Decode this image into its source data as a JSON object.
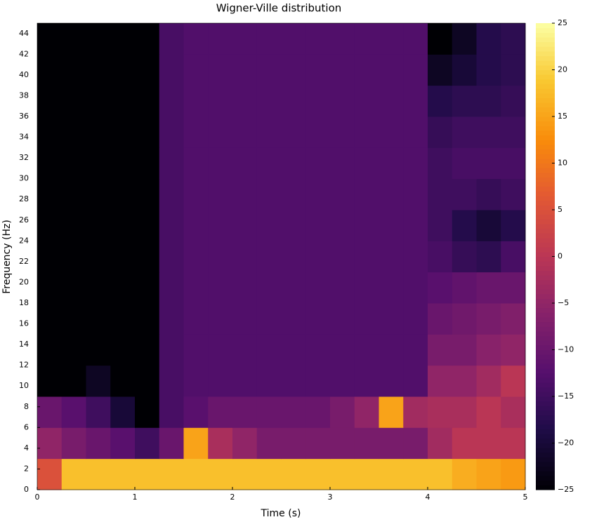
{
  "chart_data": {
    "type": "heatmap",
    "title": "Wigner-Ville distribution",
    "x_label": "Time (s)",
    "y_label": "Frequency (Hz)",
    "colormap": "inferno",
    "x": [
      0.125,
      0.375,
      0.625,
      0.875,
      1.125,
      1.375,
      1.625,
      1.875,
      2.125,
      2.375,
      2.625,
      2.875,
      3.125,
      3.375,
      3.625,
      3.875,
      4.125,
      4.375,
      4.625,
      4.875
    ],
    "y": [
      1.5,
      4.5,
      7.5,
      10.5,
      13.5,
      16.5,
      19.5,
      22.5,
      25.5,
      28.5,
      31.5,
      34.5,
      37.5,
      40.5,
      43.5
    ],
    "z": [
      [
        5,
        18,
        18,
        18,
        18,
        18,
        18,
        18,
        18,
        18,
        18,
        18,
        18,
        18,
        18,
        18,
        18,
        16,
        15,
        14
      ],
      [
        -5,
        -8,
        -10,
        -12,
        -15,
        -10,
        15,
        -2,
        -5,
        -8,
        -8,
        -8,
        -8,
        -8,
        -8,
        -8,
        -3,
        0,
        0,
        0
      ],
      [
        -10,
        -12,
        -15,
        -20,
        -25,
        -14,
        -12,
        -10,
        -10,
        -10,
        -10,
        -10,
        -8,
        -5,
        15,
        -3,
        -2,
        -2,
        0,
        -2
      ],
      [
        -25,
        -25,
        -22,
        -25,
        -25,
        -14,
        -13,
        -13,
        -13,
        -13,
        -13,
        -13,
        -13,
        -13,
        -13,
        -13,
        -5,
        -5,
        -3,
        0
      ],
      [
        -25,
        -25,
        -25,
        -25,
        -25,
        -14,
        -13,
        -13,
        -13,
        -13,
        -13,
        -13,
        -13,
        -13,
        -13,
        -13,
        -8,
        -8,
        -6,
        -5
      ],
      [
        -25,
        -25,
        -25,
        -25,
        -25,
        -14,
        -13,
        -13,
        -13,
        -13,
        -13,
        -13,
        -13,
        -13,
        -13,
        -13,
        -10,
        -9,
        -8,
        -7
      ],
      [
        -25,
        -25,
        -25,
        -25,
        -25,
        -14,
        -13,
        -13,
        -13,
        -13,
        -13,
        -13,
        -13,
        -13,
        -13,
        -13,
        -12,
        -11,
        -10,
        -10
      ],
      [
        -25,
        -25,
        -25,
        -25,
        -25,
        -14,
        -13,
        -13,
        -13,
        -13,
        -13,
        -13,
        -13,
        -13,
        -13,
        -13,
        -14,
        -16,
        -17,
        -14
      ],
      [
        -25,
        -25,
        -25,
        -25,
        -25,
        -14,
        -13,
        -13,
        -13,
        -13,
        -13,
        -13,
        -13,
        -13,
        -13,
        -13,
        -15,
        -18,
        -20,
        -18
      ],
      [
        -25,
        -25,
        -25,
        -25,
        -25,
        -14,
        -13,
        -13,
        -13,
        -13,
        -13,
        -13,
        -13,
        -13,
        -13,
        -13,
        -15,
        -15,
        -16,
        -15
      ],
      [
        -25,
        -25,
        -25,
        -25,
        -25,
        -14,
        -13,
        -13,
        -13,
        -13,
        -13,
        -13,
        -13,
        -13,
        -13,
        -13,
        -15,
        -14,
        -14,
        -14
      ],
      [
        -25,
        -25,
        -25,
        -25,
        -25,
        -14,
        -13,
        -13,
        -13,
        -13,
        -13,
        -13,
        -13,
        -13,
        -13,
        -13,
        -16,
        -15,
        -15,
        -15
      ],
      [
        -25,
        -25,
        -25,
        -25,
        -25,
        -14,
        -13,
        -13,
        -13,
        -13,
        -13,
        -13,
        -13,
        -13,
        -13,
        -13,
        -18,
        -17,
        -17,
        -16
      ],
      [
        -25,
        -25,
        -25,
        -25,
        -25,
        -14,
        -13,
        -13,
        -13,
        -13,
        -13,
        -13,
        -13,
        -13,
        -13,
        -13,
        -22,
        -20,
        -18,
        -17
      ],
      [
        -25,
        -25,
        -25,
        -25,
        -25,
        -14,
        -13,
        -13,
        -13,
        -13,
        -13,
        -13,
        -13,
        -13,
        -13,
        -13,
        -25,
        -22,
        -18,
        -17
      ]
    ],
    "xlim": [
      0,
      5
    ],
    "xticks": [
      0,
      1,
      2,
      3,
      4,
      5
    ],
    "ylim": [
      0,
      45
    ],
    "yticks": [
      0,
      2,
      4,
      6,
      8,
      10,
      12,
      14,
      16,
      18,
      20,
      22,
      24,
      26,
      28,
      30,
      32,
      34,
      36,
      38,
      40,
      42,
      44
    ],
    "clim": [
      -25,
      25
    ],
    "cticks": [
      {
        "value": -25,
        "label": "−25"
      },
      {
        "value": -20,
        "label": "−20"
      },
      {
        "value": -15,
        "label": "−15"
      },
      {
        "value": -10,
        "label": "−10"
      },
      {
        "value": -5,
        "label": "−5"
      },
      0,
      5,
      10,
      15,
      20,
      25
    ]
  }
}
